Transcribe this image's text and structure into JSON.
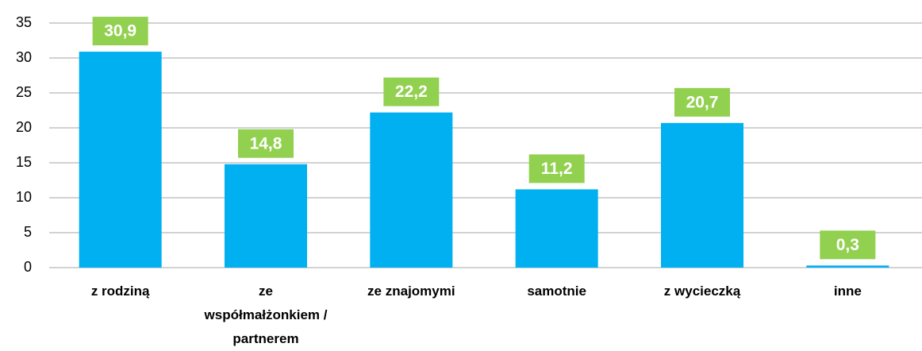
{
  "chart_data": {
    "type": "bar",
    "categories": [
      "z rodziną",
      "ze współmałżonkiem / partnerem",
      "ze znajomymi",
      "samotnie",
      "z wycieczką",
      "inne"
    ],
    "values": [
      30.9,
      14.8,
      22.2,
      11.2,
      20.7,
      0.3
    ],
    "value_labels": [
      "30,9",
      "14,8",
      "22,2",
      "11,2",
      "20,7",
      "0,3"
    ],
    "color": "#00b0f0",
    "label_color": "#92d050",
    "ylim": [
      0,
      35
    ],
    "yticks": [
      0,
      5,
      10,
      15,
      20,
      25,
      30,
      35
    ],
    "grid": true
  }
}
